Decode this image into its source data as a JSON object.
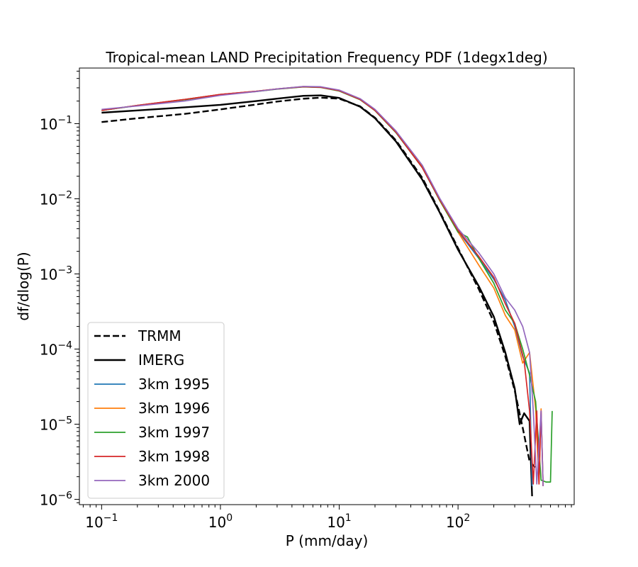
{
  "chart_data": {
    "type": "line",
    "title": "Tropical-mean LAND Precipitation Frequency PDF (1degx1deg)",
    "xlabel": "P (mm/day)",
    "ylabel": "df/dlog(P)",
    "xscale": "log",
    "yscale": "log",
    "xlim": [
      0.065,
      950
    ],
    "ylim": [
      8.5e-07,
      0.55
    ],
    "x_ticks": [
      {
        "value": 0.1,
        "base": "10",
        "exp": "−1"
      },
      {
        "value": 1,
        "base": "10",
        "exp": "0"
      },
      {
        "value": 10,
        "base": "10",
        "exp": "1"
      },
      {
        "value": 100,
        "base": "10",
        "exp": "2"
      }
    ],
    "y_ticks": [
      {
        "value": 0.1,
        "base": "10",
        "exp": "−1"
      },
      {
        "value": 0.01,
        "base": "10",
        "exp": "−2"
      },
      {
        "value": 0.001,
        "base": "10",
        "exp": "−3"
      },
      {
        "value": 0.0001,
        "base": "10",
        "exp": "−4"
      },
      {
        "value": 1e-05,
        "base": "10",
        "exp": "−5"
      },
      {
        "value": 1e-06,
        "base": "10",
        "exp": "−6"
      }
    ],
    "legend_position": "lower-left",
    "series": [
      {
        "name": "TRMM",
        "color": "#000000",
        "dash": "dashed",
        "x": [
          0.1,
          0.2,
          0.5,
          1,
          2,
          3,
          5,
          7,
          10,
          15,
          20,
          30,
          50,
          70,
          100,
          150,
          200,
          250,
          300,
          350,
          400,
          450
        ],
        "y": [
          0.105,
          0.118,
          0.135,
          0.155,
          0.18,
          0.197,
          0.215,
          0.222,
          0.215,
          0.17,
          0.12,
          0.06,
          0.019,
          0.0068,
          0.0022,
          0.00062,
          0.00023,
          8e-05,
          2.8e-05,
          9e-06,
          3.2e-06,
          2.6e-06
        ]
      },
      {
        "name": "IMERG",
        "color": "#000000",
        "dash": "solid",
        "x": [
          0.1,
          0.2,
          0.5,
          1,
          2,
          3,
          5,
          7,
          10,
          15,
          20,
          30,
          50,
          70,
          100,
          150,
          200,
          250,
          300,
          330,
          360,
          400,
          420
        ],
        "y": [
          0.14,
          0.15,
          0.165,
          0.178,
          0.2,
          0.215,
          0.235,
          0.238,
          0.22,
          0.168,
          0.118,
          0.058,
          0.018,
          0.0066,
          0.0021,
          0.00068,
          0.00027,
          9e-05,
          3e-05,
          1e-05,
          1.4e-05,
          1.1e-05,
          1.1e-06
        ]
      },
      {
        "name": "3km 1995",
        "color": "#1f77b4",
        "dash": "solid",
        "x": [
          0.1,
          0.2,
          0.5,
          1,
          2,
          3,
          5,
          7,
          10,
          15,
          20,
          30,
          50,
          70,
          100,
          150,
          200,
          250,
          300,
          350,
          400,
          420
        ],
        "y": [
          0.15,
          0.175,
          0.21,
          0.245,
          0.27,
          0.29,
          0.31,
          0.305,
          0.275,
          0.21,
          0.15,
          0.077,
          0.026,
          0.0098,
          0.0037,
          0.0016,
          0.00085,
          0.00045,
          0.0002,
          8e-05,
          4.8e-05,
          1.5e-06
        ]
      },
      {
        "name": "3km 1996",
        "color": "#ff7f0e",
        "dash": "solid",
        "x": [
          0.1,
          0.2,
          0.5,
          1,
          2,
          3,
          5,
          7,
          10,
          15,
          20,
          30,
          50,
          70,
          100,
          150,
          200,
          250,
          300,
          350,
          400,
          450,
          480,
          500,
          520
        ],
        "y": [
          0.15,
          0.175,
          0.21,
          0.245,
          0.27,
          0.29,
          0.312,
          0.307,
          0.278,
          0.212,
          0.152,
          0.078,
          0.027,
          0.0095,
          0.0036,
          0.0013,
          0.00065,
          0.00028,
          0.00018,
          6.5e-05,
          9e-05,
          1.6e-05,
          1.6e-06,
          1.6e-05,
          1.5e-06
        ]
      },
      {
        "name": "3km 1997",
        "color": "#2ca02c",
        "dash": "solid",
        "x": [
          0.1,
          0.2,
          0.5,
          1,
          2,
          3,
          5,
          7,
          10,
          15,
          20,
          30,
          50,
          70,
          100,
          120,
          150,
          200,
          250,
          300,
          350,
          400,
          450,
          500,
          550,
          600,
          620
        ],
        "y": [
          0.15,
          0.174,
          0.208,
          0.243,
          0.268,
          0.288,
          0.308,
          0.303,
          0.272,
          0.208,
          0.149,
          0.076,
          0.026,
          0.0096,
          0.0036,
          0.0031,
          0.0016,
          0.00075,
          0.00033,
          0.00022,
          0.0001,
          4.5e-05,
          2e-05,
          1.8e-06,
          1.7e-06,
          1.7e-06,
          1.5e-05
        ]
      },
      {
        "name": "3km 1998",
        "color": "#d62728",
        "dash": "solid",
        "x": [
          0.1,
          0.2,
          0.5,
          1,
          2,
          3,
          5,
          7,
          10,
          15,
          20,
          30,
          50,
          70,
          100,
          150,
          200,
          250,
          300,
          330,
          360,
          400,
          430,
          460,
          480,
          500,
          520
        ],
        "y": [
          0.15,
          0.175,
          0.21,
          0.245,
          0.27,
          0.29,
          0.31,
          0.305,
          0.275,
          0.21,
          0.15,
          0.077,
          0.026,
          0.0098,
          0.0038,
          0.0017,
          0.0009,
          0.0004,
          0.00022,
          0.00012,
          7e-05,
          1.5e-05,
          1.6e-06,
          1.5e-05,
          1.6e-06,
          1.5e-05,
          1.5e-06
        ]
      },
      {
        "name": "3km 2000",
        "color": "#9467bd",
        "dash": "solid",
        "x": [
          0.1,
          0.2,
          0.5,
          1,
          2,
          3,
          5,
          7,
          10,
          15,
          20,
          30,
          50,
          70,
          100,
          150,
          200,
          250,
          300,
          350,
          400,
          430,
          460,
          500,
          520
        ],
        "y": [
          0.155,
          0.172,
          0.2,
          0.238,
          0.268,
          0.29,
          0.313,
          0.31,
          0.28,
          0.215,
          0.155,
          0.08,
          0.028,
          0.0102,
          0.004,
          0.0019,
          0.001,
          0.00048,
          0.00033,
          0.0002,
          9e-05,
          1.5e-05,
          1.6e-06,
          1.5e-05,
          1.5e-06
        ]
      }
    ]
  }
}
